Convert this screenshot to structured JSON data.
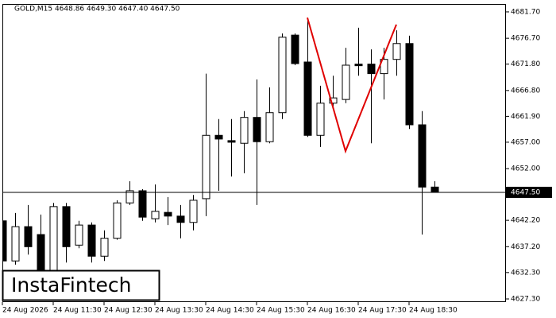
{
  "chart_data": {
    "type": "candlestick",
    "header": "GOLD,M15  4648.86 4649.30 4647.40 4647.50",
    "logo": "InstaFintech",
    "categories": [
      "24 Aug 2026",
      null,
      null,
      null,
      "24 Aug 11:30",
      null,
      null,
      null,
      "24 Aug 12:30",
      null,
      null,
      null,
      "24 Aug 13:30",
      null,
      null,
      null,
      "24 Aug 14:30",
      null,
      null,
      null,
      "24 Aug 15:30",
      null,
      null,
      null,
      "24 Aug 16:30",
      null,
      null,
      null,
      "24 Aug 17:30",
      null,
      null,
      null,
      "24 Aug 18:30",
      null,
      null
    ],
    "open": [
      4642.1,
      4634.5,
      4641.0,
      4639.5,
      4632.7,
      4644.8,
      4637.5,
      4641.3,
      4635.4,
      4638.8,
      4645.5,
      4647.8,
      4642.5,
      4643.7,
      4643.0,
      4641.8,
      4646.3,
      4658.3,
      4657.3,
      4656.8,
      4661.7,
      4657.1,
      4662.6,
      4677.3,
      4672.2,
      4658.3,
      4664.4,
      4665.1,
      4671.8,
      4671.8,
      4670.0,
      4672.7,
      4675.7,
      4660.3,
      4648.5
    ],
    "high": [
      4643.6,
      4643.6,
      4645.1,
      4643.3,
      4645.5,
      4645.5,
      4642.1,
      4641.8,
      4640.3,
      4646.0,
      4649.6,
      4648.1,
      4649.0,
      4646.6,
      4645.1,
      4647.0,
      4670.0,
      4661.4,
      4661.4,
      4662.9,
      4668.9,
      4667.4,
      4677.6,
      4677.6,
      4680.6,
      4667.7,
      4669.6,
      4674.9,
      4678.7,
      4674.6,
      4674.9,
      4678.2,
      4677.2,
      4662.9,
      4649.6
    ],
    "low": [
      4632.7,
      4633.8,
      4635.7,
      4632.0,
      4632.0,
      4634.2,
      4636.9,
      4634.2,
      4634.5,
      4638.5,
      4645.1,
      4642.1,
      4641.8,
      4641.3,
      4638.8,
      4640.3,
      4643.0,
      4647.8,
      4650.5,
      4651.1,
      4645.1,
      4656.8,
      4661.4,
      4671.6,
      4658.0,
      4656.1,
      4663.6,
      4664.4,
      4669.6,
      4656.8,
      4665.1,
      4669.6,
      4659.5,
      4639.5,
      4647.5
    ],
    "close": [
      4634.5,
      4641.0,
      4637.2,
      4632.7,
      4644.8,
      4637.2,
      4641.3,
      4635.4,
      4638.8,
      4645.5,
      4647.8,
      4642.8,
      4643.9,
      4643.0,
      4641.8,
      4646.0,
      4658.3,
      4657.6,
      4657.0,
      4661.7,
      4657.1,
      4662.6,
      4676.9,
      4671.9,
      4658.3,
      4664.4,
      4665.4,
      4671.6,
      4671.5,
      4670.0,
      4672.7,
      4675.7,
      4660.3,
      4648.5,
      4647.5
    ],
    "up_color": "#ffffff",
    "down_color": "#000000",
    "current_price": {
      "value": 4647.5,
      "label": "4647.50"
    },
    "pattern": {
      "color": "#e00000",
      "x": [
        24,
        27,
        31
      ],
      "y": [
        4680.6,
        4655.3,
        4679.3
      ]
    },
    "ylim": [
      4626.7,
      4683.2
    ],
    "yticks": [
      {
        "value": 4627.3,
        "label": "4627.30"
      },
      {
        "value": 4632.3,
        "label": "4632.30"
      },
      {
        "value": 4637.2,
        "label": "4637.20"
      },
      {
        "value": 4642.2,
        "label": "4642.20"
      },
      {
        "value": 4652.0,
        "label": "4652.00"
      },
      {
        "value": 4657.0,
        "label": "4657.00"
      },
      {
        "value": 4661.9,
        "label": "4661.90"
      },
      {
        "value": 4666.8,
        "label": "4666.80"
      },
      {
        "value": 4671.8,
        "label": "4671.80"
      },
      {
        "value": 4676.7,
        "label": "4676.70"
      },
      {
        "value": 4681.7,
        "label": "4681.70"
      }
    ]
  }
}
